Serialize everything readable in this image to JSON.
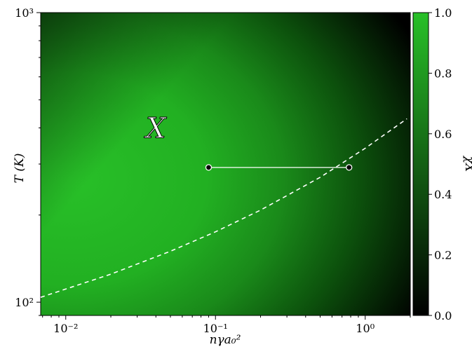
{
  "chart_data": {
    "type": "heatmap",
    "xlabel": "nγa₀²",
    "ylabel": "T (K)",
    "xscale": "log",
    "yscale": "log",
    "xlim": [
      0.0068,
      2.0
    ],
    "ylim": [
      90,
      1000
    ],
    "x_ticks": [
      {
        "value": 0.01,
        "label": "10⁻²"
      },
      {
        "value": 0.1,
        "label": "10⁻¹"
      },
      {
        "value": 1,
        "label": "10⁰"
      }
    ],
    "y_ticks": [
      {
        "value": 100,
        "label": "10²"
      },
      {
        "value": 1000,
        "label": "10³"
      }
    ],
    "colorbar": {
      "label": "χX",
      "range": [
        0.0,
        1.0
      ],
      "ticks": [
        "0.0",
        "0.2",
        "0.4",
        "0.6",
        "0.8",
        "1.0"
      ],
      "color_low": "#000000",
      "color_high": "#28c028"
    },
    "boundary_curve": {
      "style": "dashed",
      "color": "#ffffff",
      "points": [
        [
          0.0068,
          104
        ],
        [
          0.02,
          125
        ],
        [
          0.05,
          150
        ],
        [
          0.1,
          175
        ],
        [
          0.2,
          208
        ],
        [
          0.5,
          270
        ],
        [
          1.0,
          340
        ],
        [
          1.9,
          430
        ]
      ]
    },
    "path_segment": {
      "color": "#ffffff",
      "start": [
        0.09,
        292
      ],
      "end": [
        0.78,
        292
      ]
    },
    "annotations": [
      {
        "text": "X",
        "x": 0.04,
        "y": 400
      }
    ]
  }
}
